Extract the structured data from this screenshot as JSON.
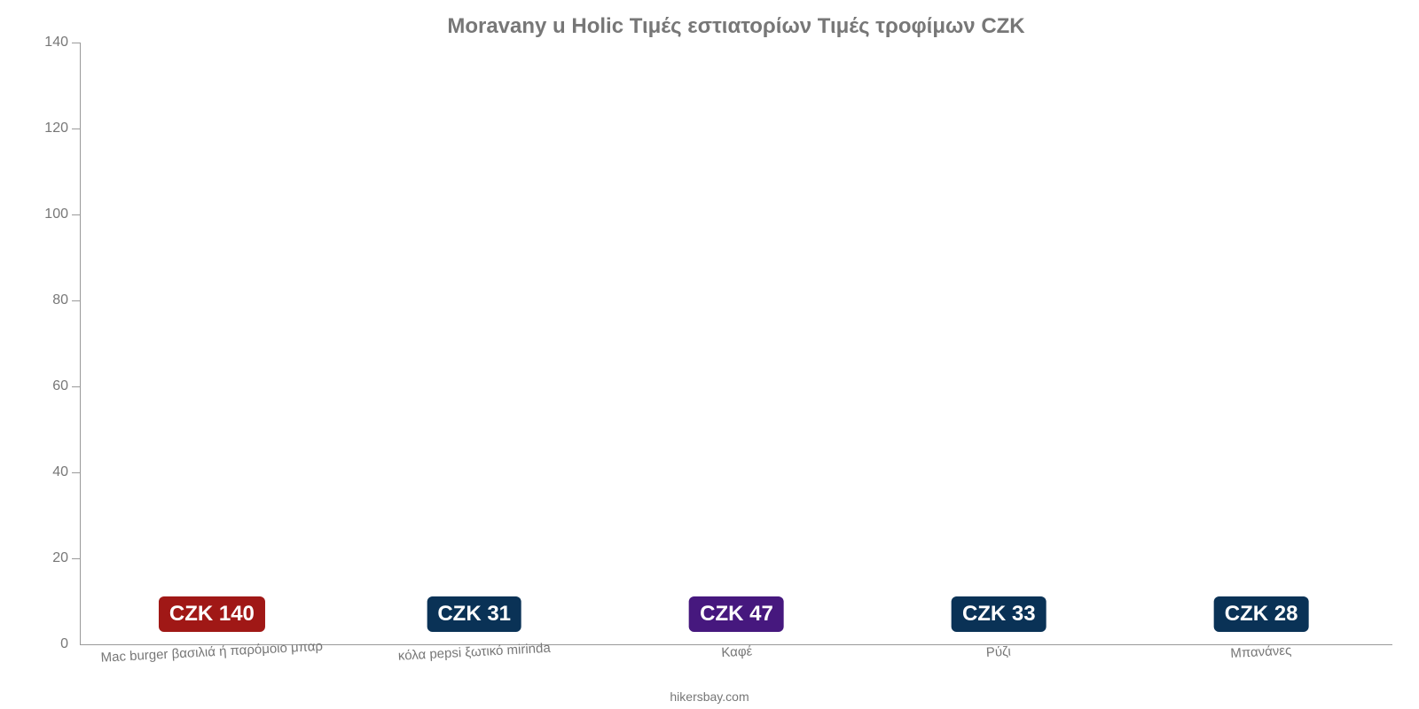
{
  "chart": {
    "type": "bar",
    "title": "Moravany u Holic Τιμές εστιατορίων Τιμές τροφίμων CZK",
    "title_fontsize": 24,
    "title_color": "#777777",
    "background_color": "#ffffff",
    "axis_color": "#9a9a9a",
    "tick_label_color": "#777777",
    "tick_label_fontsize": 16,
    "xlabel_fontsize": 15,
    "xlabel_color": "#777777",
    "xlabel_rotation_deg": -3,
    "value_label_fontsize": 24,
    "bar_width_ratio": 0.78,
    "ylim": [
      0,
      140
    ],
    "ytick_step": 20,
    "yticks": [
      0,
      20,
      40,
      60,
      80,
      100,
      120,
      140
    ],
    "categories": [
      "Mac burger βασιλιά ή παρόμοιο μπαρ",
      "κόλα pepsi ξωτικό mirinda",
      "Καφέ",
      "Ρύζι",
      "Μπανάνες"
    ],
    "values": [
      140,
      31,
      47,
      33,
      28
    ],
    "value_labels": [
      "CZK 140",
      "CZK 31",
      "CZK 47",
      "CZK 33",
      "CZK 28"
    ],
    "bar_colors": [
      "#e73c3a",
      "#2e8ade",
      "#8038e0",
      "#2e8ade",
      "#2e8ade"
    ],
    "badge_colors": [
      "#a01816",
      "#0a3256",
      "#46187e",
      "#0a3256",
      "#0a3256"
    ],
    "credit": "hikersbay.com"
  }
}
